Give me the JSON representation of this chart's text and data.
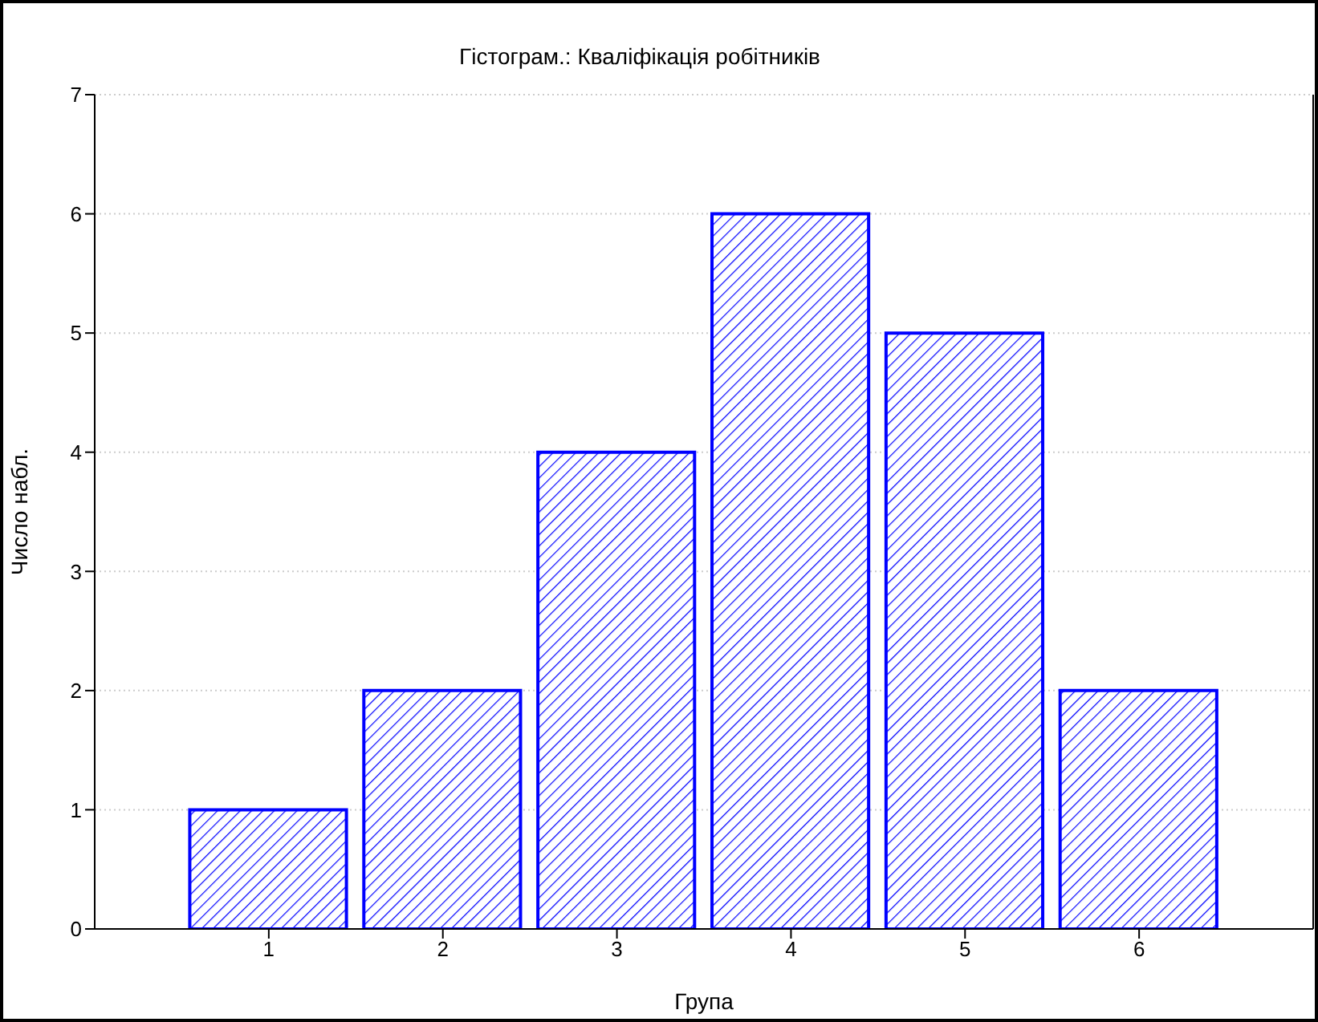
{
  "chart_data": {
    "type": "bar",
    "title": "Гістограм.: Кваліфікація робітників",
    "xlabel": "Група",
    "ylabel": "Число набл.",
    "categories": [
      "1",
      "2",
      "3",
      "4",
      "5",
      "6"
    ],
    "values": [
      1,
      2,
      4,
      6,
      5,
      2
    ],
    "color": "#0000ff",
    "ylim": [
      0,
      7
    ],
    "yticks": [
      0,
      1,
      2,
      3,
      4,
      5,
      6,
      7
    ],
    "grid": "y"
  }
}
